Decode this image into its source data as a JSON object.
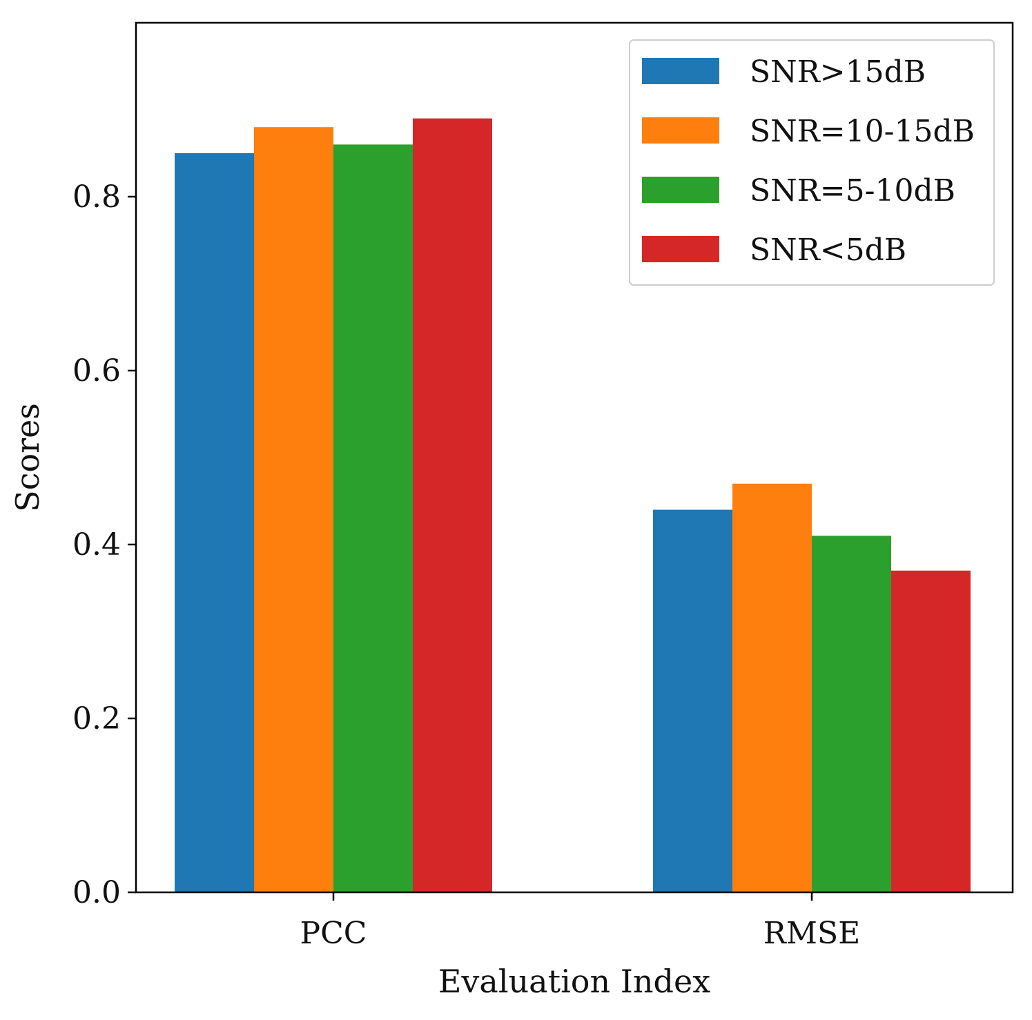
{
  "chart_data": {
    "type": "bar",
    "title": "",
    "xlabel": "Evaluation Index",
    "ylabel": "Scores",
    "categories": [
      "PCC",
      "RMSE"
    ],
    "series": [
      {
        "name": "SNR>15dB",
        "values": [
          0.85,
          0.44
        ],
        "color": "#1f77b4"
      },
      {
        "name": "SNR=10-15dB",
        "values": [
          0.88,
          0.47
        ],
        "color": "#ff7f0e"
      },
      {
        "name": "SNR=5-10dB",
        "values": [
          0.86,
          0.41
        ],
        "color": "#2ca02c"
      },
      {
        "name": "SNR<5dB",
        "values": [
          0.89,
          0.37
        ],
        "color": "#d62728"
      }
    ],
    "ylim": [
      0,
      1.0
    ],
    "yticks": [
      0.0,
      0.2,
      0.4,
      0.6,
      0.8
    ],
    "ytick_labels": [
      "0.0",
      "0.2",
      "0.4",
      "0.6",
      "0.8"
    ],
    "grid": false,
    "legend_position": "top-right"
  }
}
